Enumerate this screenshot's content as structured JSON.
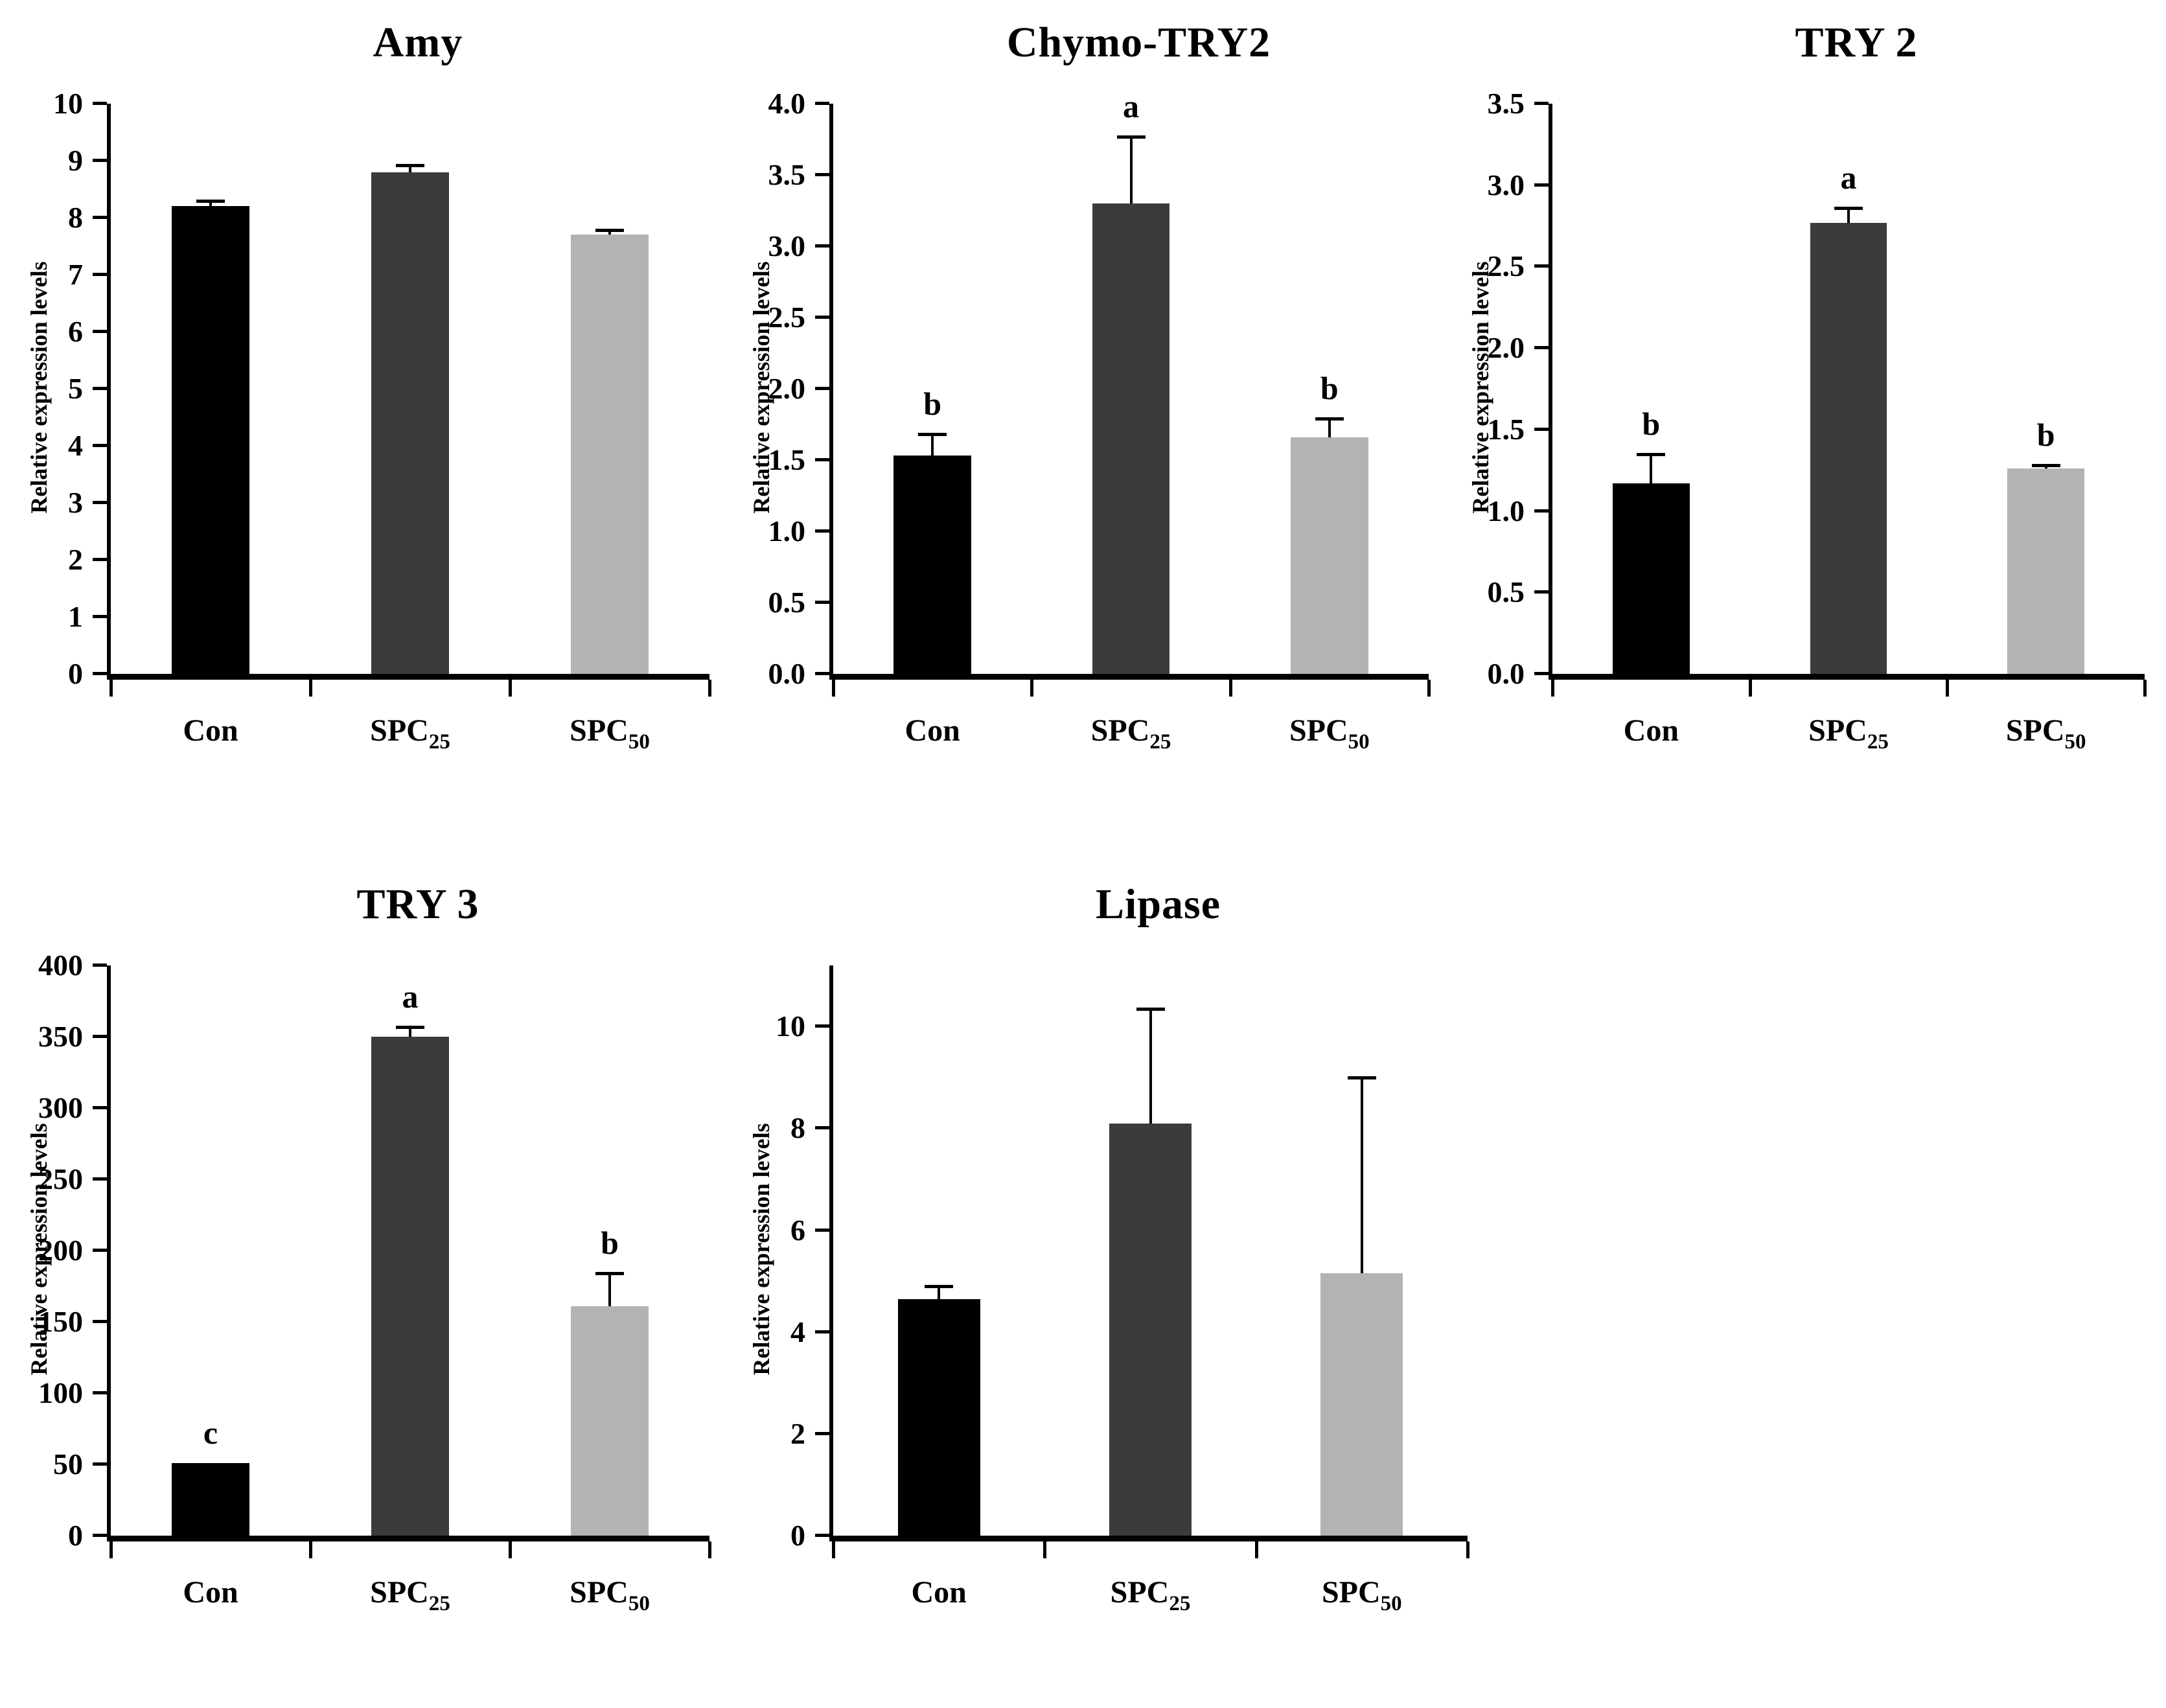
{
  "figure": {
    "background": "#ffffff",
    "axis_color": "#000000",
    "bar_colors": [
      "#000000",
      "#3b3b3b",
      "#b3b3b3"
    ],
    "category_labels": [
      {
        "base": "Con",
        "sub": ""
      },
      {
        "base": "SPC",
        "sub": "25"
      },
      {
        "base": "SPC",
        "sub": "50"
      }
    ]
  },
  "chart_data": [
    {
      "type": "bar",
      "title": "Amy",
      "ylabel": "Relative expression levels",
      "xlabel": "",
      "categories": [
        "Con",
        "SPC25",
        "SPC50"
      ],
      "values": [
        8.2,
        8.8,
        7.7
      ],
      "errors": [
        0.1,
        0.12,
        0.08
      ],
      "sig_letters": [
        "",
        "",
        ""
      ],
      "ylim": [
        0,
        10
      ],
      "ytick_step": 1,
      "ytick_max": 10,
      "ytick_decimals": 0,
      "grid": false,
      "legend": "none"
    },
    {
      "type": "bar",
      "title": "Chymo-TRY2",
      "ylabel": "Relative expression levels",
      "xlabel": "",
      "categories": [
        "Con",
        "SPC25",
        "SPC50"
      ],
      "values": [
        1.53,
        3.3,
        1.66
      ],
      "errors": [
        0.15,
        0.47,
        0.13
      ],
      "sig_letters": [
        "b",
        "a",
        "b"
      ],
      "ylim": [
        0,
        4.0
      ],
      "ytick_step": 0.5,
      "ytick_max": 4.0,
      "ytick_decimals": 1,
      "grid": false,
      "legend": "none"
    },
    {
      "type": "bar",
      "title": "TRY 2",
      "ylabel": "Relative expression levels",
      "xlabel": "",
      "categories": [
        "Con",
        "SPC25",
        "SPC50"
      ],
      "values": [
        1.17,
        2.77,
        1.26
      ],
      "errors": [
        0.18,
        0.09,
        0.02
      ],
      "sig_letters": [
        "b",
        "a",
        "b"
      ],
      "ylim": [
        0,
        3.5
      ],
      "ytick_step": 0.5,
      "ytick_max": 3.5,
      "ytick_decimals": 1,
      "grid": false,
      "legend": "none"
    },
    {
      "type": "bar",
      "title": "TRY 3",
      "ylabel": "Relative expression levels",
      "xlabel": "",
      "categories": [
        "Con",
        "SPC25",
        "SPC50"
      ],
      "values": [
        51,
        350,
        161
      ],
      "errors": [
        0,
        7,
        23
      ],
      "sig_letters": [
        "c",
        "a",
        "b"
      ],
      "ylim": [
        0,
        400
      ],
      "ytick_step": 50,
      "ytick_max": 400,
      "ytick_decimals": 0,
      "grid": false,
      "legend": "none"
    },
    {
      "type": "bar",
      "title": "Lipase",
      "ylabel": "Relative expression levels",
      "xlabel": "",
      "categories": [
        "Con",
        "SPC25",
        "SPC50"
      ],
      "values": [
        4.65,
        8.1,
        5.15
      ],
      "errors": [
        0.25,
        2.25,
        3.85
      ],
      "sig_letters": [
        "",
        "",
        ""
      ],
      "ylim": [
        0,
        11.2
      ],
      "ytick_step": 2,
      "ytick_max": 10,
      "ytick_decimals": 0,
      "grid": false,
      "legend": "none"
    }
  ]
}
